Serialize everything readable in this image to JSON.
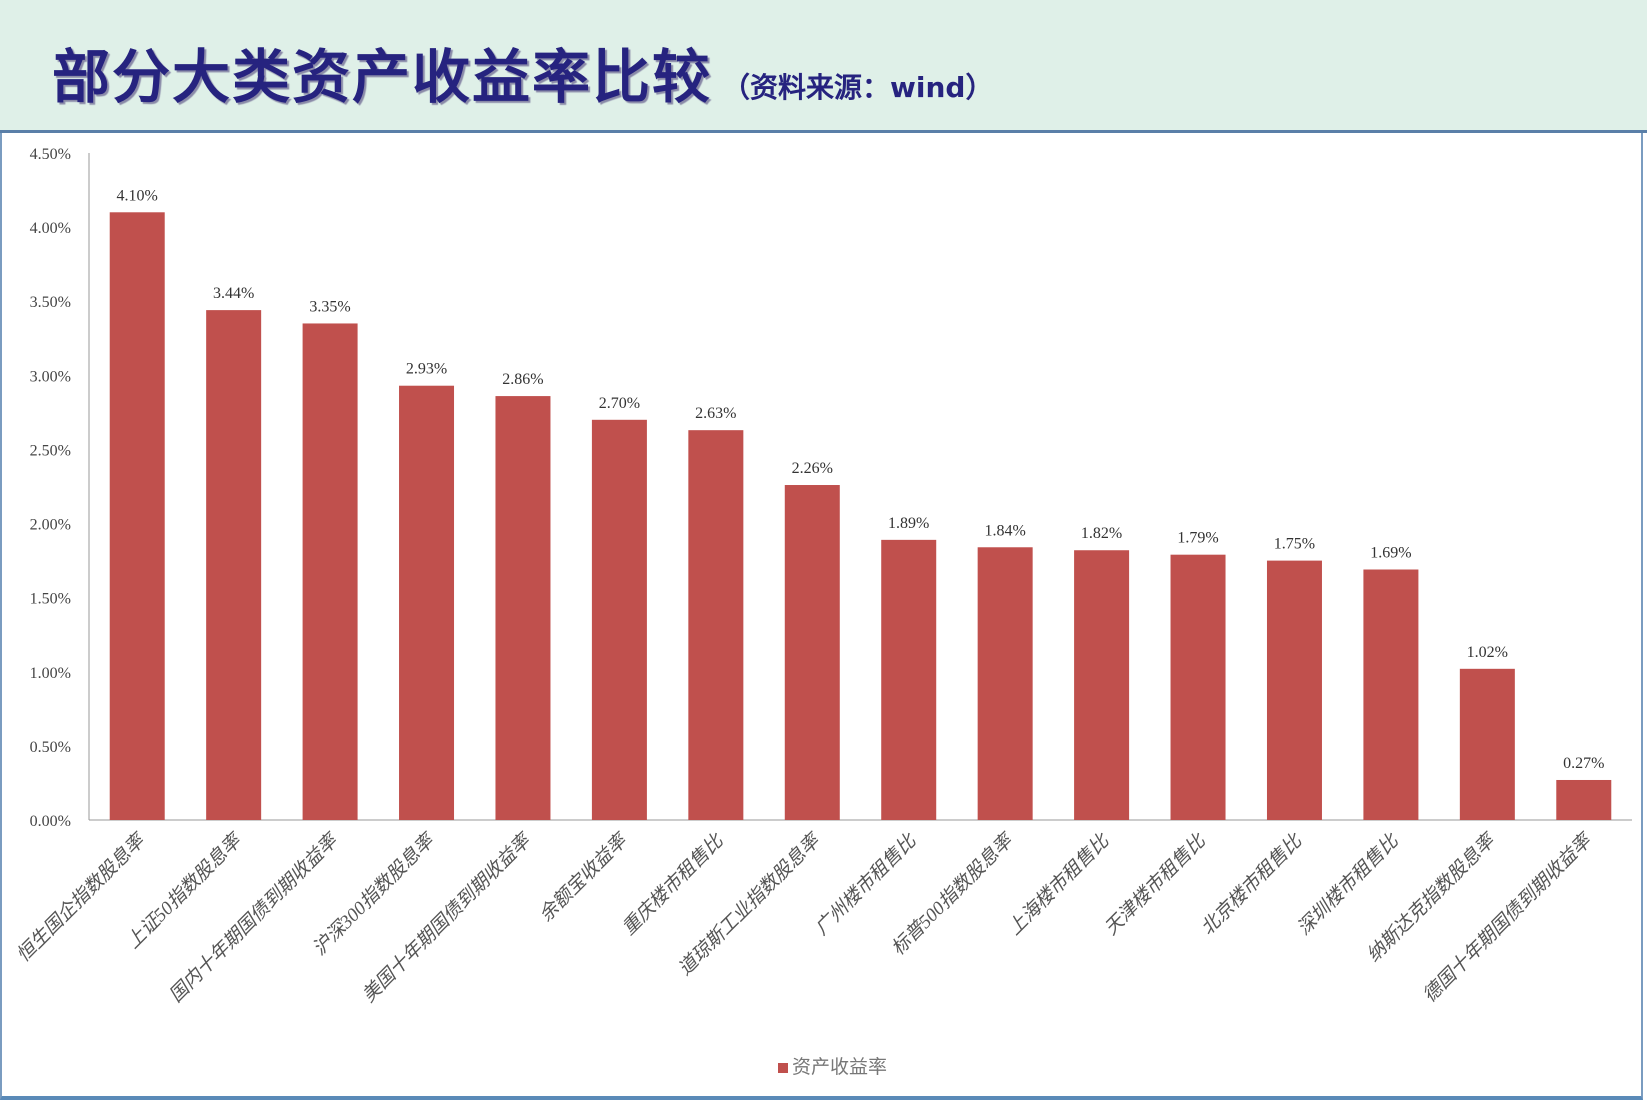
{
  "header": {
    "title": "部分大类资产收益率比较",
    "subtitle": "（资料来源：wind）"
  },
  "chart_data": {
    "type": "bar",
    "title": "",
    "xlabel": "",
    "ylabel": "",
    "ylim": [
      0,
      4.5
    ],
    "yticks": [
      "0.00%",
      "0.50%",
      "1.00%",
      "1.50%",
      "2.00%",
      "2.50%",
      "3.00%",
      "3.50%",
      "4.00%",
      "4.50%"
    ],
    "grid": false,
    "legend": "bottom",
    "bar_color": "#c0504d",
    "categories": [
      "恒生国企指数股息率",
      "上证50指数股息率",
      "国内十年期国债到期收益率",
      "沪深300指数股息率",
      "美国十年期国债到期收益率",
      "余额宝收益率",
      "重庆楼市租售比",
      "道琼斯工业指数股息率",
      "广州楼市租售比",
      "标普500指数股息率",
      "上海楼市租售比",
      "天津楼市租售比",
      "北京楼市租售比",
      "深圳楼市租售比",
      "纳斯达克指数股息率",
      "德国十年期国债到期收益率"
    ],
    "series": [
      {
        "name": "资产收益率",
        "values": [
          4.1,
          3.44,
          3.35,
          2.93,
          2.86,
          2.7,
          2.63,
          2.26,
          1.89,
          1.84,
          1.82,
          1.79,
          1.75,
          1.69,
          1.02,
          0.27
        ]
      }
    ],
    "data_labels": [
      "4.10%",
      "3.44%",
      "3.35%",
      "2.93%",
      "2.86%",
      "2.70%",
      "2.63%",
      "2.26%",
      "1.89%",
      "1.84%",
      "1.82%",
      "1.79%",
      "1.75%",
      "1.69%",
      "1.02%",
      "0.27%"
    ]
  }
}
